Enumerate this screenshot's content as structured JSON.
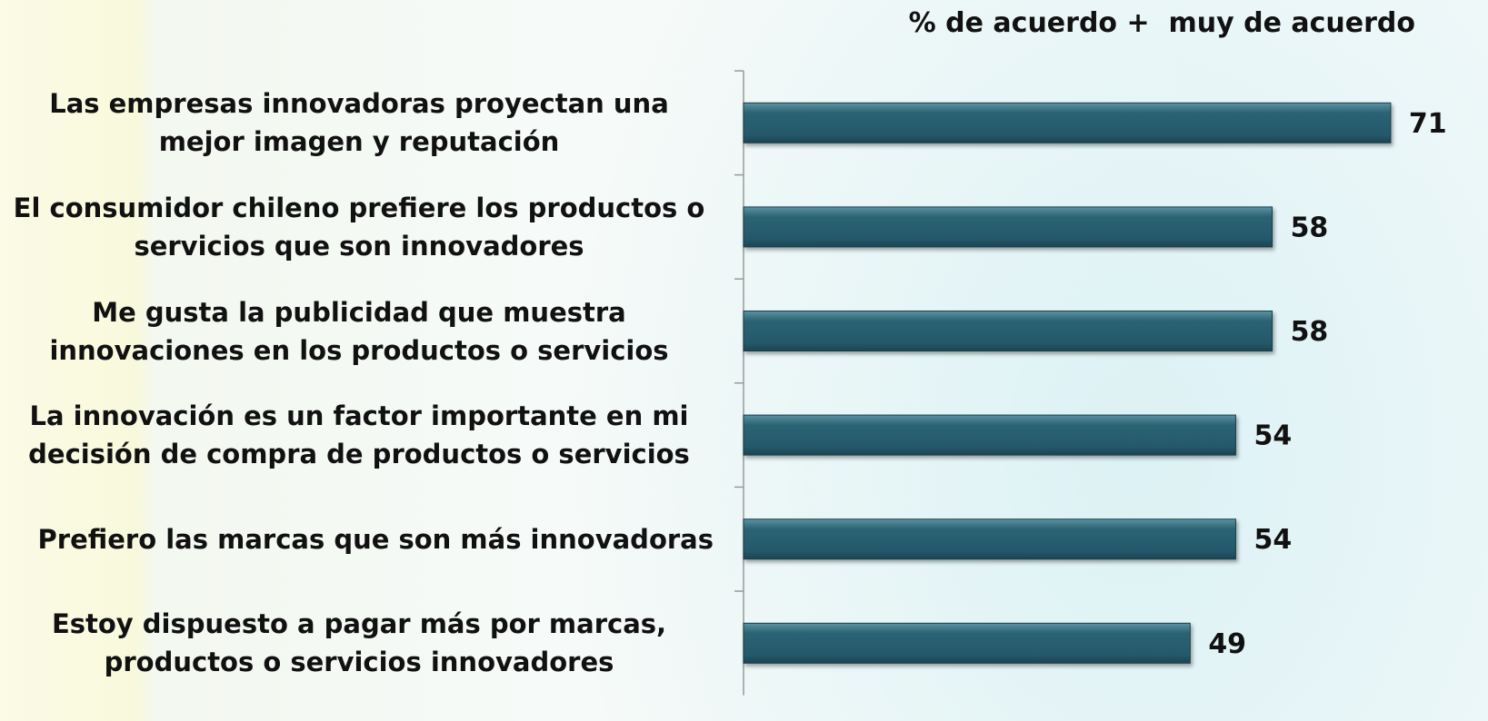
{
  "chart_data": {
    "type": "bar",
    "orientation": "horizontal",
    "title": "% de acuerdo +  muy de acuerdo",
    "categories": [
      "Las empresas innovadoras proyectan una mejor imagen y reputación",
      "El consumidor chileno prefiere los productos o servicios que son innovadores",
      "Me gusta la publicidad que muestra innovaciones en los productos o servicios",
      "La innovación es un factor importante en mi decisión de compra de productos o servicios",
      "Prefiero las marcas que son más innovadoras",
      "Estoy dispuesto a pagar más por marcas, productos o servicios innovadores"
    ],
    "values": [
      71,
      58,
      58,
      54,
      54,
      49
    ],
    "color": "#2b6373",
    "xlim": [
      0,
      74
    ]
  }
}
